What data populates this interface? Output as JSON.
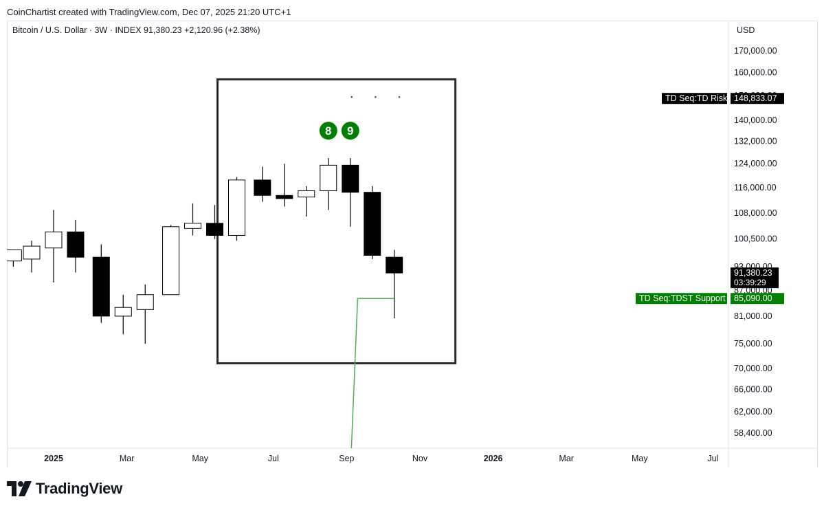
{
  "header": {
    "credit": "CoinChartist created with TradingView.com, Dec 07, 2025 21:20 UTC+1",
    "symbol_line": "Bitcoin / U.S. Dollar · 3W · INDEX  91,380.23  +2,120.96 (+2.38%)",
    "currency": "USD"
  },
  "footer": {
    "brand": "TradingView"
  },
  "colors": {
    "up": "#ffffff",
    "down": "#000000",
    "support_line": "#4caf50",
    "td_count": "#008000",
    "label_green": "#008000",
    "label_black": "#000000"
  },
  "chart_data": {
    "type": "candlestick",
    "timeframe": "3W",
    "x_labels": [
      {
        "label": "2025",
        "bold": true,
        "x": 0
      },
      {
        "label": "Mar",
        "bold": false,
        "x": 2
      },
      {
        "label": "May",
        "bold": false,
        "x": 4
      },
      {
        "label": "Jul",
        "bold": false,
        "x": 6
      },
      {
        "label": "Sep",
        "bold": false,
        "x": 8
      },
      {
        "label": "Nov",
        "bold": false,
        "x": 10
      },
      {
        "label": "2026",
        "bold": true,
        "x": 12
      },
      {
        "label": "Mar",
        "bold": false,
        "x": 14
      },
      {
        "label": "May",
        "bold": false,
        "x": 16
      },
      {
        "label": "Jul",
        "bold": false,
        "x": 18
      }
    ],
    "y_ticks": [
      58400,
      62000,
      66000,
      70000,
      75000,
      81000,
      87000,
      93000,
      100500,
      108000,
      116000,
      124000,
      132000,
      140000,
      150000,
      160000,
      170000
    ],
    "y_tick_labels": [
      "58,400.00",
      "62,000.00",
      "66,000.00",
      "70,000.00",
      "75,000.00",
      "81,000.00",
      "87,000.00",
      "93,000.00",
      "100,500.00",
      "108,000.00",
      "116,000.00",
      "124,000.00",
      "132,000.00",
      "140,000.00",
      "150,000.00",
      "160,000.00",
      "170,000.00"
    ],
    "y_scale": "log",
    "candles": [
      {
        "x": -1.1,
        "open": 94500,
        "high": 97000,
        "low": 93000,
        "close": 97500,
        "partial": true
      },
      {
        "x": -0.6,
        "open": 95000,
        "high": 100000,
        "low": 91500,
        "close": 98500
      },
      {
        "x": 0.0,
        "open": 98000,
        "high": 109000,
        "low": 89000,
        "close": 102500
      },
      {
        "x": 0.6,
        "open": 102500,
        "high": 106000,
        "low": 91500,
        "close": 95500
      },
      {
        "x": 1.3,
        "open": 95500,
        "high": 99000,
        "low": 79500,
        "close": 81000
      },
      {
        "x": 1.9,
        "open": 81000,
        "high": 86000,
        "low": 77000,
        "close": 83000
      },
      {
        "x": 2.5,
        "open": 82500,
        "high": 88500,
        "low": 75000,
        "close": 86000
      },
      {
        "x": 3.2,
        "open": 86000,
        "high": 104500,
        "low": 86000,
        "close": 104000
      },
      {
        "x": 3.8,
        "open": 103500,
        "high": 111000,
        "low": 101500,
        "close": 105000
      },
      {
        "x": 4.4,
        "open": 105000,
        "high": 110500,
        "low": 100500,
        "close": 101500
      },
      {
        "x": 5.0,
        "open": 101500,
        "high": 119500,
        "low": 100000,
        "close": 118500
      },
      {
        "x": 5.7,
        "open": 118500,
        "high": 123000,
        "low": 111500,
        "close": 113500
      },
      {
        "x": 6.3,
        "open": 113500,
        "high": 124000,
        "low": 110000,
        "close": 112500
      },
      {
        "x": 6.9,
        "open": 113000,
        "high": 116500,
        "low": 107000,
        "close": 115000
      },
      {
        "x": 7.5,
        "open": 115000,
        "high": 126000,
        "low": 109000,
        "close": 123500
      },
      {
        "x": 8.1,
        "open": 123500,
        "high": 126000,
        "low": 104000,
        "close": 114500,
        "td_count": "9"
      },
      {
        "x": 8.7,
        "open": 114500,
        "high": 116500,
        "low": 95000,
        "close": 96000
      },
      {
        "x": 9.3,
        "open": 95500,
        "high": 97500,
        "low": 80500,
        "close": 91380
      }
    ],
    "td_counts": [
      {
        "label": "8",
        "candle_index": 14
      },
      {
        "label": "9",
        "candle_index": 15
      }
    ],
    "support_line": {
      "points": [
        {
          "x": 8.1,
          "y": 52000
        },
        {
          "x": 8.3,
          "y": 85090
        },
        {
          "x": 9.3,
          "y": 85090
        }
      ],
      "label": "TD Seq:TDST Support",
      "value_label": "85,090.00",
      "value": 85090
    },
    "risk_level": {
      "label": "TD Seq:TD Risk",
      "value_label": "148,833.07",
      "value": 148833.07
    },
    "last_price": {
      "value": 91380.23,
      "value_label": "91,380.23",
      "countdown": "03:39:29"
    },
    "box": {
      "x1": 5.0,
      "x2": 10.5,
      "y_top": 157000,
      "y_bottom": 71000
    }
  }
}
